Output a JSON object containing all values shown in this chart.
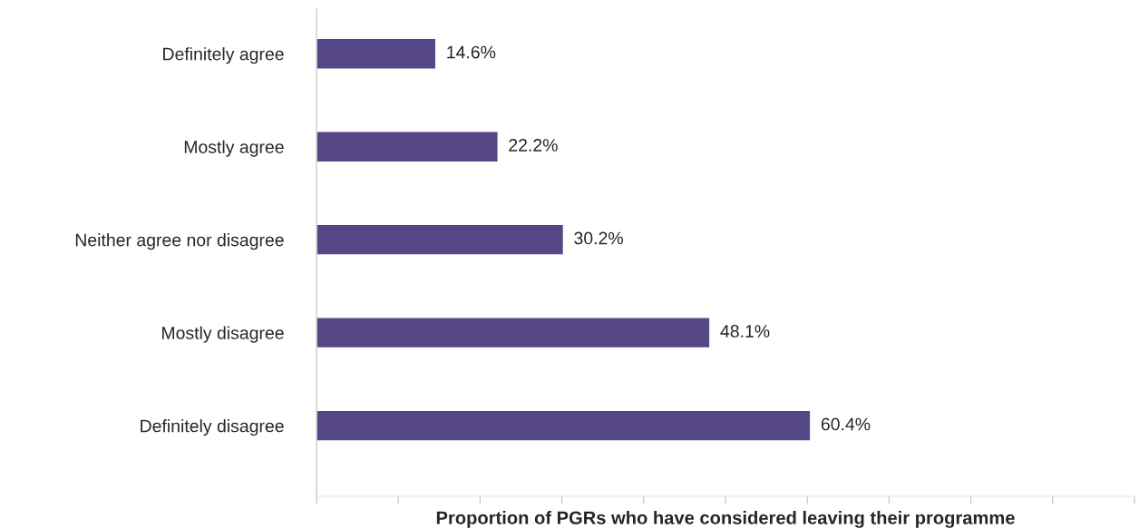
{
  "chart_data": {
    "type": "bar",
    "orientation": "horizontal",
    "xlabel": "Proportion of PGRs who have considered leaving their programme",
    "categories": [
      "Definitely agree",
      "Mostly agree",
      "Neither agree nor disagree",
      "Mostly disagree",
      "Definitely disagree"
    ],
    "values": [
      14.6,
      22.2,
      30.2,
      48.1,
      60.4
    ],
    "value_labels": [
      "14.6%",
      "22.2%",
      "30.2%",
      "48.1%",
      "60.4%"
    ],
    "color": "#554686",
    "xlim": [
      0,
      100
    ],
    "xticks": [
      {
        "value": 0,
        "label": null
      },
      {
        "value": 10,
        "label": null
      },
      {
        "value": 20,
        "label": null
      },
      {
        "value": 30,
        "label": null
      },
      {
        "value": 40,
        "label": null
      },
      {
        "value": 50,
        "label": null
      },
      {
        "value": 60,
        "label": null
      },
      {
        "value": 70,
        "label": null
      },
      {
        "value": 80,
        "label": null
      },
      {
        "value": 90,
        "label": null
      },
      {
        "value": 100,
        "label": null
      }
    ],
    "tick_labels": "y",
    "grid": false,
    "legend": false
  }
}
